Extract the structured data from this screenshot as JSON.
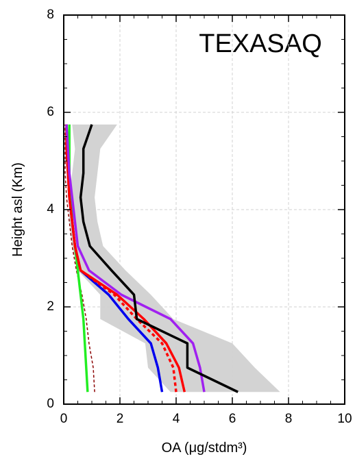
{
  "chart_data": {
    "type": "profile",
    "title": "TEXASAQ",
    "x_label": "OA (μg/stdm³)",
    "y_label": "Height asl (Km)",
    "xlim": [
      0,
      10
    ],
    "xticks": [
      0,
      2,
      4,
      6,
      8,
      10
    ],
    "ylim": [
      0,
      8
    ],
    "yticks": [
      0,
      2,
      4,
      6,
      8
    ],
    "grid": true,
    "y": [
      0.25,
      0.75,
      1.25,
      1.75,
      2.25,
      2.75,
      3.25,
      3.75,
      4.25,
      4.75,
      5.25,
      5.75
    ],
    "band": {
      "color": "#d3d3d3",
      "lower": [
        3.8,
        3.0,
        2.9,
        1.3,
        1.3,
        0.5,
        0.3,
        0.2,
        0.2,
        0.3,
        0.4,
        0.3
      ],
      "upper": [
        7.7,
        6.8,
        6.0,
        3.9,
        3.1,
        2.2,
        1.4,
        1.2,
        1.1,
        1.2,
        1.3,
        1.9
      ]
    },
    "series": [
      {
        "color": "#8b0000",
        "dash": "dashed",
        "width": 1.5,
        "values": [
          1.1,
          1.05,
          0.9,
          0.8,
          0.65,
          0.45,
          0.3,
          0.2,
          0.1,
          0.05,
          0.05,
          0.05
        ]
      },
      {
        "color": "#22ee22",
        "dash": "solid",
        "width": 3.5,
        "values": [
          0.85,
          0.8,
          0.75,
          0.7,
          0.6,
          0.5,
          0.4,
          0.3,
          0.25,
          0.2,
          0.2,
          0.2
        ]
      },
      {
        "color": "#0000ee",
        "dash": "solid",
        "width": 3.5,
        "values": [
          3.5,
          3.35,
          3.1,
          2.3,
          1.6,
          0.6,
          0.4,
          0.3,
          0.2,
          0.15,
          0.1,
          0.1
        ]
      },
      {
        "color": "#ff0000",
        "dash": "dotted",
        "width": 3.5,
        "values": [
          4.0,
          3.9,
          3.5,
          2.6,
          1.8,
          0.6,
          0.4,
          0.3,
          0.2,
          0.15,
          0.1,
          0.1
        ]
      },
      {
        "color": "#ff0000",
        "dash": "solid",
        "width": 3.5,
        "values": [
          4.3,
          4.1,
          3.65,
          2.85,
          1.9,
          0.6,
          0.4,
          0.3,
          0.2,
          0.15,
          0.1,
          0.1
        ]
      },
      {
        "color": "#a020f0",
        "dash": "solid",
        "width": 3.5,
        "values": [
          5.0,
          4.85,
          4.6,
          3.8,
          2.05,
          0.9,
          0.5,
          0.4,
          0.3,
          0.2,
          0.15,
          0.1
        ]
      },
      {
        "color": "#000000",
        "dash": "solid",
        "width": 3.5,
        "values": [
          6.2,
          4.4,
          4.4,
          2.6,
          2.5,
          1.7,
          0.93,
          0.7,
          0.6,
          0.7,
          0.7,
          1.0
        ]
      }
    ]
  }
}
